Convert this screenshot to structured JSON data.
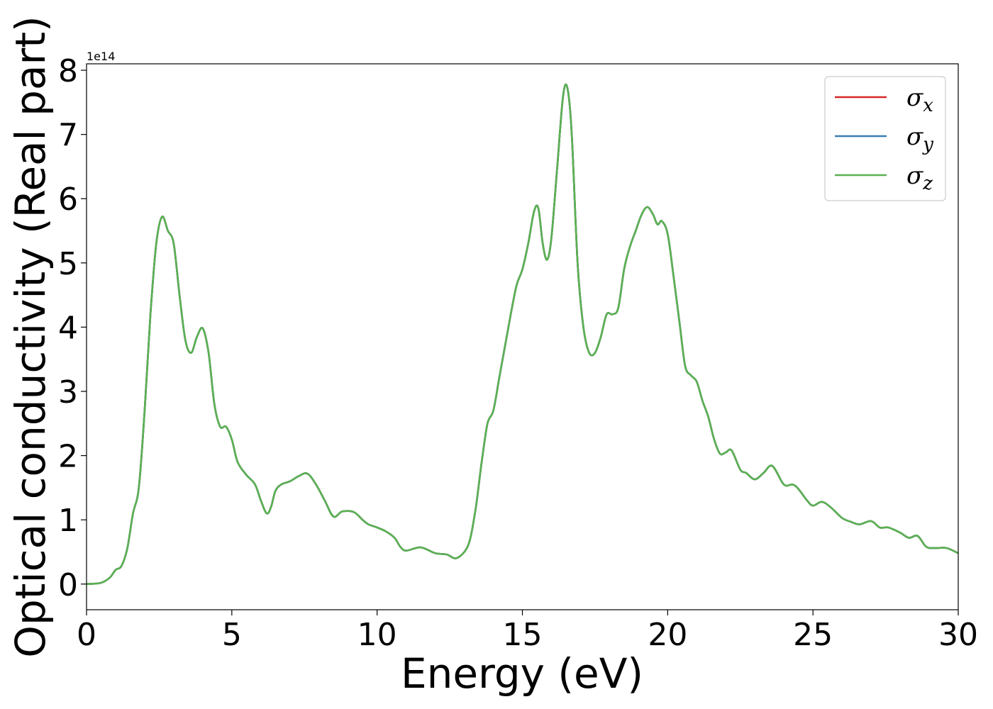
{
  "chart_data": {
    "type": "line",
    "title": "",
    "xlabel": "Energy (eV)",
    "ylabel": "Optical conductivity (Real part)",
    "y_offset_label": "1e14",
    "xlim": [
      0,
      30
    ],
    "ylim": [
      -0.4,
      8.1
    ],
    "xticks": [
      0,
      5,
      10,
      15,
      20,
      25,
      30
    ],
    "yticks": [
      0,
      1,
      2,
      3,
      4,
      5,
      6,
      7,
      8
    ],
    "grid": false,
    "legend_position": "top-right",
    "colors": {
      "sigma_x": "#d62728",
      "sigma_y": "#3a7fb4",
      "sigma_z": "#5ab152"
    },
    "legend": [
      {
        "key": "sigma_x",
        "symbol": "σ",
        "sub": "x"
      },
      {
        "key": "sigma_y",
        "symbol": "σ",
        "sub": "y"
      },
      {
        "key": "sigma_z",
        "symbol": "σ",
        "sub": "z"
      }
    ],
    "x": [
      0,
      0.5,
      0.8,
      1.0,
      1.2,
      1.4,
      1.6,
      1.8,
      2.0,
      2.2,
      2.4,
      2.6,
      2.8,
      3.0,
      3.2,
      3.4,
      3.6,
      3.8,
      4.0,
      4.2,
      4.4,
      4.6,
      4.8,
      5.0,
      5.2,
      5.5,
      5.8,
      6.0,
      6.2,
      6.35,
      6.5,
      6.7,
      7.0,
      7.3,
      7.6,
      7.9,
      8.2,
      8.5,
      8.8,
      9.2,
      9.5,
      9.7,
      10.0,
      10.3,
      10.6,
      10.8,
      11.0,
      11.5,
      12.0,
      12.4,
      12.7,
      13.0,
      13.2,
      13.4,
      13.6,
      13.8,
      14.0,
      14.2,
      14.4,
      14.6,
      14.8,
      15.0,
      15.2,
      15.4,
      15.55,
      15.7,
      15.85,
      16.0,
      16.2,
      16.4,
      16.55,
      16.7,
      16.9,
      17.1,
      17.3,
      17.5,
      17.7,
      17.9,
      18.1,
      18.3,
      18.5,
      18.7,
      18.9,
      19.1,
      19.3,
      19.5,
      19.65,
      19.8,
      20.0,
      20.2,
      20.4,
      20.6,
      20.8,
      21.0,
      21.2,
      21.4,
      21.6,
      21.8,
      22.0,
      22.2,
      22.5,
      22.7,
      23.0,
      23.3,
      23.6,
      24.0,
      24.3,
      24.5,
      24.8,
      25.0,
      25.3,
      25.6,
      26.0,
      26.3,
      26.6,
      27.0,
      27.3,
      27.6,
      28.0,
      28.3,
      28.6,
      28.9,
      29.2,
      29.6,
      30.0
    ],
    "series": [
      {
        "key": "sigma_x",
        "values": [
          0,
          0.02,
          0.1,
          0.22,
          0.28,
          0.55,
          1.1,
          1.5,
          2.7,
          4.2,
          5.3,
          5.72,
          5.5,
          5.3,
          4.5,
          3.8,
          3.6,
          3.85,
          3.98,
          3.6,
          2.8,
          2.45,
          2.45,
          2.25,
          1.9,
          1.7,
          1.55,
          1.3,
          1.1,
          1.2,
          1.45,
          1.55,
          1.6,
          1.68,
          1.72,
          1.55,
          1.3,
          1.05,
          1.13,
          1.12,
          1.0,
          0.93,
          0.88,
          0.82,
          0.72,
          0.58,
          0.52,
          0.57,
          0.48,
          0.46,
          0.4,
          0.5,
          0.7,
          1.2,
          1.9,
          2.5,
          2.7,
          3.2,
          3.7,
          4.2,
          4.65,
          4.9,
          5.3,
          5.8,
          5.85,
          5.3,
          5.05,
          5.4,
          6.5,
          7.6,
          7.72,
          7.0,
          5.0,
          4.0,
          3.6,
          3.6,
          3.85,
          4.2,
          4.2,
          4.3,
          4.9,
          5.25,
          5.5,
          5.75,
          5.87,
          5.75,
          5.6,
          5.65,
          5.45,
          4.8,
          4.1,
          3.4,
          3.25,
          3.15,
          2.85,
          2.6,
          2.25,
          2.03,
          2.05,
          2.08,
          1.78,
          1.73,
          1.63,
          1.73,
          1.84,
          1.55,
          1.55,
          1.48,
          1.3,
          1.22,
          1.28,
          1.2,
          1.03,
          0.97,
          0.93,
          0.98,
          0.88,
          0.88,
          0.8,
          0.72,
          0.75,
          0.58,
          0.56,
          0.56,
          0.48
        ]
      },
      {
        "key": "sigma_y",
        "values": [
          0,
          0.02,
          0.1,
          0.22,
          0.28,
          0.55,
          1.1,
          1.5,
          2.7,
          4.2,
          5.3,
          5.72,
          5.5,
          5.3,
          4.5,
          3.8,
          3.6,
          3.85,
          3.98,
          3.6,
          2.8,
          2.45,
          2.45,
          2.25,
          1.9,
          1.7,
          1.55,
          1.3,
          1.1,
          1.2,
          1.45,
          1.55,
          1.6,
          1.68,
          1.72,
          1.55,
          1.3,
          1.05,
          1.13,
          1.12,
          1.0,
          0.93,
          0.88,
          0.82,
          0.72,
          0.58,
          0.52,
          0.57,
          0.48,
          0.46,
          0.4,
          0.5,
          0.7,
          1.2,
          1.9,
          2.5,
          2.7,
          3.2,
          3.7,
          4.2,
          4.65,
          4.9,
          5.3,
          5.8,
          5.85,
          5.3,
          5.05,
          5.4,
          6.5,
          7.6,
          7.72,
          7.0,
          5.0,
          4.0,
          3.6,
          3.6,
          3.85,
          4.2,
          4.2,
          4.3,
          4.9,
          5.25,
          5.5,
          5.75,
          5.87,
          5.75,
          5.6,
          5.65,
          5.45,
          4.8,
          4.1,
          3.4,
          3.25,
          3.15,
          2.85,
          2.6,
          2.25,
          2.03,
          2.05,
          2.08,
          1.78,
          1.73,
          1.63,
          1.73,
          1.84,
          1.55,
          1.55,
          1.48,
          1.3,
          1.22,
          1.28,
          1.2,
          1.03,
          0.97,
          0.93,
          0.98,
          0.88,
          0.88,
          0.8,
          0.72,
          0.75,
          0.58,
          0.56,
          0.56,
          0.48
        ]
      },
      {
        "key": "sigma_z",
        "values": [
          0,
          0.02,
          0.1,
          0.22,
          0.28,
          0.55,
          1.1,
          1.5,
          2.7,
          4.2,
          5.3,
          5.72,
          5.5,
          5.3,
          4.5,
          3.8,
          3.6,
          3.85,
          3.98,
          3.6,
          2.8,
          2.45,
          2.45,
          2.25,
          1.9,
          1.7,
          1.55,
          1.3,
          1.1,
          1.2,
          1.45,
          1.55,
          1.6,
          1.68,
          1.72,
          1.55,
          1.3,
          1.05,
          1.13,
          1.12,
          1.0,
          0.93,
          0.88,
          0.82,
          0.72,
          0.58,
          0.52,
          0.57,
          0.48,
          0.46,
          0.4,
          0.5,
          0.7,
          1.2,
          1.9,
          2.5,
          2.7,
          3.2,
          3.7,
          4.2,
          4.65,
          4.9,
          5.3,
          5.8,
          5.85,
          5.3,
          5.05,
          5.4,
          6.5,
          7.6,
          7.72,
          7.0,
          5.0,
          4.0,
          3.6,
          3.6,
          3.85,
          4.2,
          4.2,
          4.3,
          4.9,
          5.25,
          5.5,
          5.75,
          5.87,
          5.75,
          5.6,
          5.65,
          5.45,
          4.8,
          4.1,
          3.4,
          3.25,
          3.15,
          2.85,
          2.6,
          2.25,
          2.03,
          2.05,
          2.08,
          1.78,
          1.73,
          1.63,
          1.73,
          1.84,
          1.55,
          1.55,
          1.48,
          1.3,
          1.22,
          1.28,
          1.2,
          1.03,
          0.97,
          0.93,
          0.98,
          0.88,
          0.88,
          0.8,
          0.72,
          0.75,
          0.58,
          0.56,
          0.56,
          0.48
        ]
      }
    ]
  }
}
